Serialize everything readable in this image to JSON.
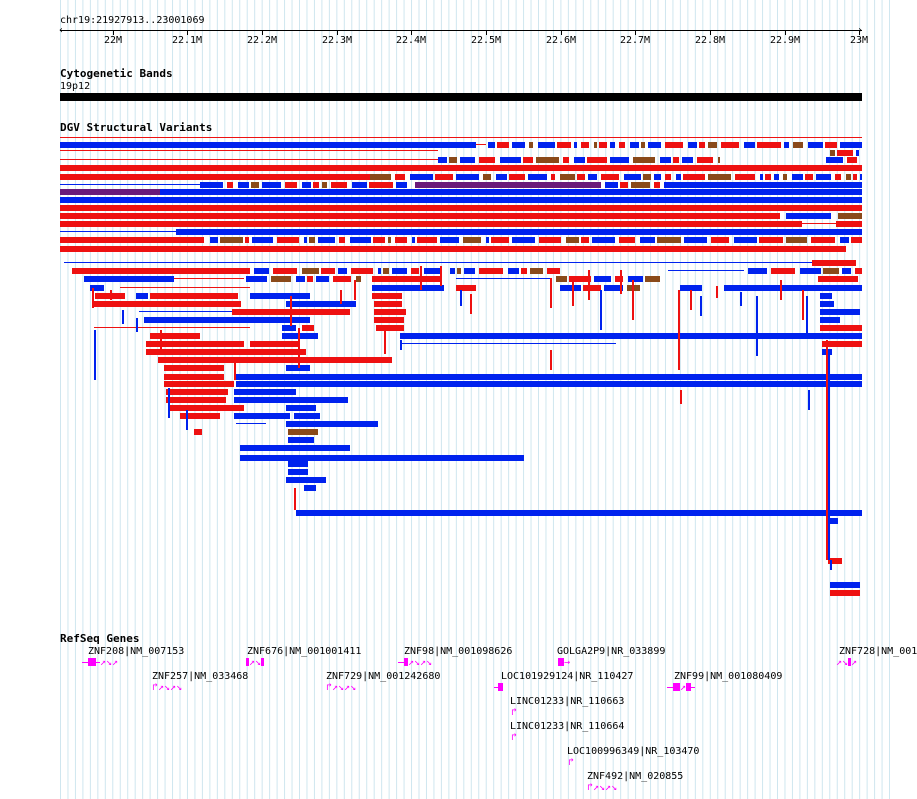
{
  "ruler": {
    "position_label": "chr19:21927913..23001069",
    "ticks": [
      "22M",
      "22.1M",
      "22.2M",
      "22.3M",
      "22.4M",
      "22.5M",
      "22.6M",
      "22.7M",
      "22.8M",
      "22.9M",
      "23M"
    ]
  },
  "tracks": {
    "cytoband": {
      "title": "Cytogenetic Bands",
      "band_label": "19p12"
    },
    "dgv": {
      "title": "DGV Structural Variants"
    },
    "refseq": {
      "title": "RefSeq Genes",
      "genes": [
        "ZNF208|NM_007153",
        "ZNF676|NM_001001411",
        "ZNF98|NM_001098626",
        "GOLGA2P9|NR_033899",
        "ZNF728|NM_001",
        "ZNF257|NM_033468",
        "ZNF729|NM_001242680",
        "LOC101929124|NR_110427",
        "ZNF99|NM_001080409",
        "LINC01233|NR_110663",
        "LINC01233|NR_110664",
        "LOC100996349|NR_103470",
        "ZNF492|NM_020855"
      ]
    }
  },
  "colors": {
    "gain": "#0022ee",
    "loss": "#ee1111",
    "both": "#8a4a1a",
    "inversion": "#6a1a7a",
    "gene": "#ff00ff",
    "grid": "#cfe6ef"
  }
}
